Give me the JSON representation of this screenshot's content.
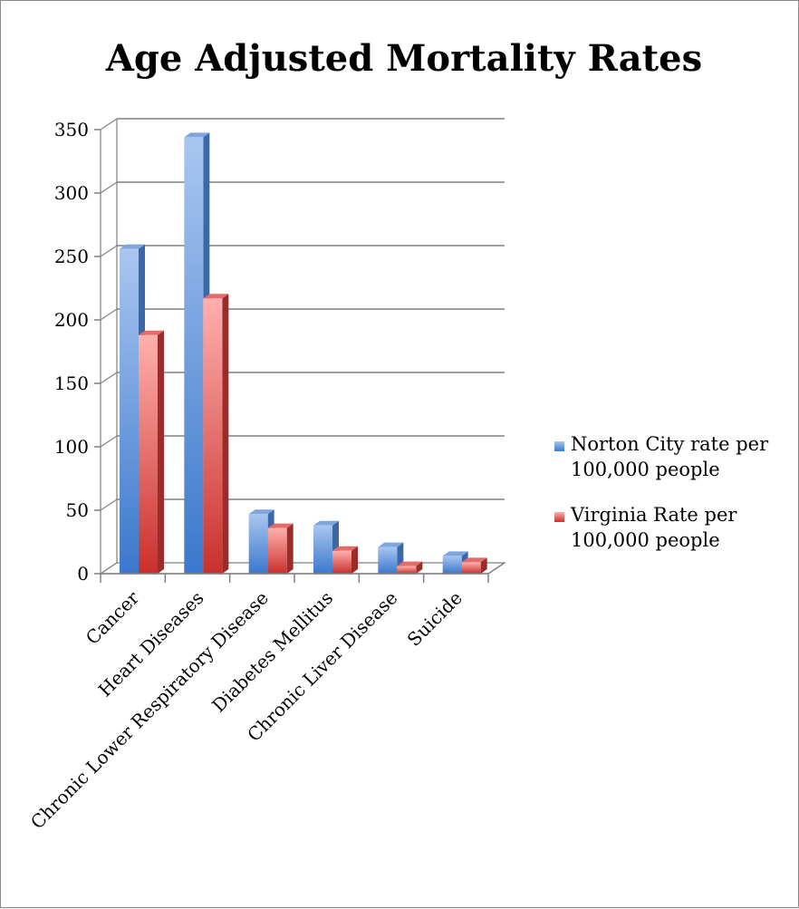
{
  "chart_data": {
    "type": "bar",
    "title": "Age Adjusted Mortality Rates",
    "categories": [
      "Cancer",
      "Heart Diseases",
      "Chronic Lower Respiratory Disease",
      "Diabetes Mellitus",
      "Chronic Liver Disease",
      "Suicide"
    ],
    "series": [
      {
        "name": "Norton City rate per 100,000 people",
        "legend_lines": [
          "Norton City rate per",
          "100,000 people"
        ],
        "values": [
          256,
          344,
          47,
          38,
          21,
          14
        ],
        "color": "#4f81bd"
      },
      {
        "name": "Virginia Rate per 100,000 people",
        "legend_lines": [
          "Virginia Rate per",
          "100,000 people"
        ],
        "values": [
          188,
          217,
          36,
          18,
          6,
          9
        ],
        "color": "#c0504d"
      }
    ],
    "ylim": [
      0,
      350
    ],
    "yticks": [
      0,
      50,
      100,
      150,
      200,
      250,
      300,
      350
    ],
    "grid": true,
    "legend_position": "right"
  }
}
